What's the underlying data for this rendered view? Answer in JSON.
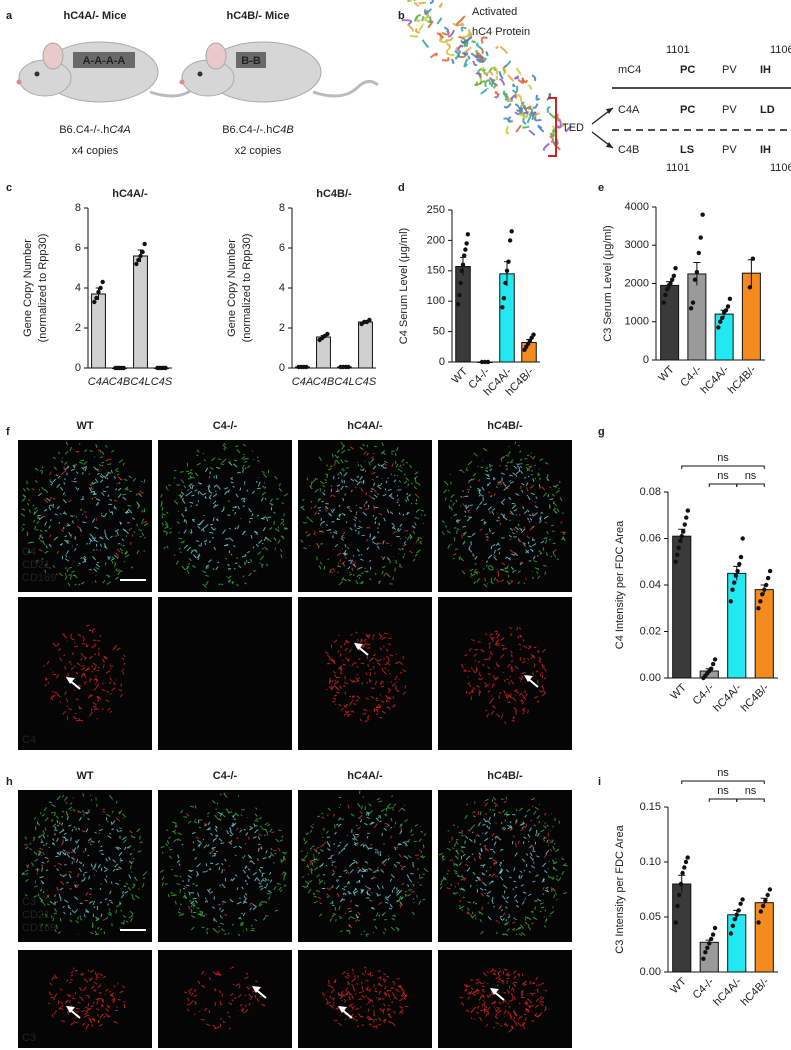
{
  "figure": {
    "panel_labels": [
      "a",
      "b",
      "c",
      "d",
      "e",
      "f",
      "g",
      "h",
      "i"
    ],
    "a": {
      "mice": [
        {
          "title": "hC4A/- Mice",
          "tag": "A-A-A-A",
          "strain_prefix": "B6.C4-/-.h",
          "strain_gene": "C4A",
          "copies": "x4 copies"
        },
        {
          "title": "hC4B/- Mice",
          "tag": "B-B",
          "strain_prefix": "B6.C4-/-.h",
          "strain_gene": "C4B",
          "copies": "x2 copies"
        }
      ]
    },
    "b": {
      "protein_label": [
        "Activated",
        "hC4 Protein"
      ],
      "domain": "TED",
      "start": "1101",
      "end": "1106",
      "rows": [
        {
          "name": "mC4",
          "residues": [
            "PC",
            "PV",
            "IH"
          ],
          "colors": [
            "#22d6e8",
            "#333333",
            "#f58a3c"
          ]
        },
        {
          "name": "C4A",
          "residues": [
            "PC",
            "PV",
            "LD"
          ],
          "colors": [
            "#22d6e8",
            "#333333",
            "#22d6e8"
          ]
        },
        {
          "name": "C4B",
          "residues": [
            "LS",
            "PV",
            "IH"
          ],
          "colors": [
            "#f58a3c",
            "#333333",
            "#f58a3c"
          ]
        }
      ]
    },
    "f": {
      "columns": [
        "WT",
        "C4-/-",
        "hC4A/-",
        "hC4B/-"
      ],
      "channels": [
        "C4",
        "CD21",
        "CD169"
      ],
      "single": "C4"
    },
    "h": {
      "columns": [
        "WT",
        "C4-/-",
        "hC4A/-",
        "hC4B/-"
      ],
      "channels": [
        "C3",
        "CD21",
        "CD169"
      ],
      "single": "C3"
    }
  },
  "chart_data": [
    {
      "type": "bar",
      "title": "hC4A/-",
      "ylabel": [
        "Gene Copy Number",
        "(normalized to Rpp30)"
      ],
      "categories": [
        "C4A",
        "C4B",
        "C4L",
        "C4S"
      ],
      "values": [
        3.7,
        0,
        5.6,
        0
      ],
      "errors": [
        0.3,
        0,
        0.3,
        0
      ],
      "points": [
        [
          3.3,
          3.5,
          3.8,
          4.0,
          4.3
        ],
        [
          0,
          0,
          0,
          0,
          0
        ],
        [
          5.2,
          5.4,
          5.6,
          5.8,
          6.2
        ],
        [
          0,
          0,
          0,
          0,
          0
        ]
      ],
      "colors": [
        "#d0d0d0",
        "#d0d0d0",
        "#d0d0d0",
        "#d0d0d0"
      ],
      "ylim": [
        0,
        8
      ],
      "yticks": [
        0,
        2,
        4,
        6,
        8
      ]
    },
    {
      "type": "bar",
      "title": "hC4B/-",
      "ylabel": [
        "Gene Copy Number",
        "(normalized to Rpp30)"
      ],
      "categories": [
        "C4A",
        "C4B",
        "C4L",
        "C4S"
      ],
      "values": [
        0.05,
        1.55,
        0.05,
        2.3
      ],
      "errors": [
        0.02,
        0.08,
        0.02,
        0.05
      ],
      "points": [
        [
          0.05,
          0.05,
          0.05,
          0.05
        ],
        [
          1.4,
          1.5,
          1.6,
          1.7
        ],
        [
          0.05,
          0.05,
          0.05,
          0.05
        ],
        [
          2.2,
          2.3,
          2.3,
          2.4
        ]
      ],
      "colors": [
        "#d0d0d0",
        "#d0d0d0",
        "#d0d0d0",
        "#d0d0d0"
      ],
      "ylim": [
        0,
        8
      ],
      "yticks": [
        0,
        2,
        4,
        6,
        8
      ]
    },
    {
      "type": "bar",
      "ylabel": [
        "C4 Serum Level (μg/ml)"
      ],
      "categories": [
        "WT",
        "C4-/-",
        "hC4A/-",
        "hC4B/-"
      ],
      "values": [
        157,
        0,
        145,
        32
      ],
      "errors": [
        15,
        0,
        20,
        5
      ],
      "points": [
        [
          95,
          110,
          130,
          150,
          160,
          175,
          185,
          195,
          210
        ],
        [
          0,
          0,
          0
        ],
        [
          90,
          105,
          130,
          150,
          165,
          200,
          215
        ],
        [
          20,
          25,
          30,
          35,
          40,
          45
        ]
      ],
      "colors": [
        "#3a3a3a",
        "#9a9a9a",
        "#22e8f2",
        "#f58a1f"
      ],
      "ylim": [
        0,
        250
      ],
      "yticks": [
        0,
        50,
        100,
        150,
        200,
        250
      ]
    },
    {
      "type": "bar",
      "ylabel": [
        "C3 Serum Level (μg/ml)"
      ],
      "categories": [
        "WT",
        "C4-/-",
        "hC4A/-",
        "hC4B/-"
      ],
      "values": [
        1950,
        2250,
        1200,
        2270
      ],
      "errors": [
        100,
        300,
        100,
        350
      ],
      "points": [
        [
          1500,
          1700,
          1850,
          1950,
          2000,
          2100,
          2200,
          2400
        ],
        [
          1350,
          1500,
          2100,
          2300,
          2800,
          3200,
          3800
        ],
        [
          850,
          1000,
          1100,
          1250,
          1300,
          1400,
          1600
        ],
        [
          1900,
          2650
        ]
      ],
      "colors": [
        "#3a3a3a",
        "#9a9a9a",
        "#22e8f2",
        "#f58a1f"
      ],
      "ylim": [
        0,
        4000
      ],
      "yticks": [
        0,
        1000,
        2000,
        3000,
        4000
      ]
    },
    {
      "type": "bar",
      "ylabel": [
        "C4 Intensity per FDC Area"
      ],
      "categories": [
        "WT",
        "C4-/-",
        "hC4A/-",
        "hC4B/-"
      ],
      "values": [
        0.061,
        0.003,
        0.045,
        0.038
      ],
      "errors": [
        0.003,
        0.001,
        0.003,
        0.002
      ],
      "points": [
        [
          0.05,
          0.053,
          0.056,
          0.059,
          0.061,
          0.063,
          0.066,
          0.069,
          0.072
        ],
        [
          0.0,
          0.001,
          0.002,
          0.003,
          0.004,
          0.006,
          0.008
        ],
        [
          0.033,
          0.038,
          0.041,
          0.044,
          0.046,
          0.049,
          0.052,
          0.06
        ],
        [
          0.03,
          0.033,
          0.036,
          0.038,
          0.04,
          0.043,
          0.046
        ]
      ],
      "colors": [
        "#3a3a3a",
        "#9a9a9a",
        "#22e8f2",
        "#f58a1f"
      ],
      "ylim": [
        0,
        0.08
      ],
      "yticks": [
        {
          "value": 0,
          "label": "0.00"
        },
        {
          "value": 0.02,
          "label": "0.02"
        },
        {
          "value": 0.04,
          "label": "0.04"
        },
        {
          "value": 0.06,
          "label": "0.06"
        },
        {
          "value": 0.08,
          "label": "0.08"
        }
      ],
      "annotations": [
        "ns",
        "ns",
        "ns"
      ]
    },
    {
      "type": "bar",
      "ylabel": [
        "C3 Intensity per FDC Area"
      ],
      "categories": [
        "WT",
        "C4-/-",
        "hC4A/-",
        "hC4B/-"
      ],
      "values": [
        0.08,
        0.027,
        0.052,
        0.063
      ],
      "errors": [
        0.008,
        0.002,
        0.004,
        0.004
      ],
      "points": [
        [
          0.045,
          0.06,
          0.07,
          0.08,
          0.09,
          0.095,
          0.1,
          0.104
        ],
        [
          0.012,
          0.018,
          0.022,
          0.026,
          0.03,
          0.034,
          0.04
        ],
        [
          0.035,
          0.042,
          0.048,
          0.052,
          0.056,
          0.062,
          0.066
        ],
        [
          0.045,
          0.055,
          0.06,
          0.065,
          0.07,
          0.075
        ]
      ],
      "colors": [
        "#3a3a3a",
        "#9a9a9a",
        "#22e8f2",
        "#f58a1f"
      ],
      "ylim": [
        0,
        0.15
      ],
      "yticks": [
        {
          "value": 0,
          "label": "0.00"
        },
        {
          "value": 0.05,
          "label": "0.05"
        },
        {
          "value": 0.1,
          "label": "0.10"
        },
        {
          "value": 0.15,
          "label": "0.15"
        }
      ],
      "annotations": [
        "ns",
        "ns",
        "ns"
      ]
    }
  ]
}
